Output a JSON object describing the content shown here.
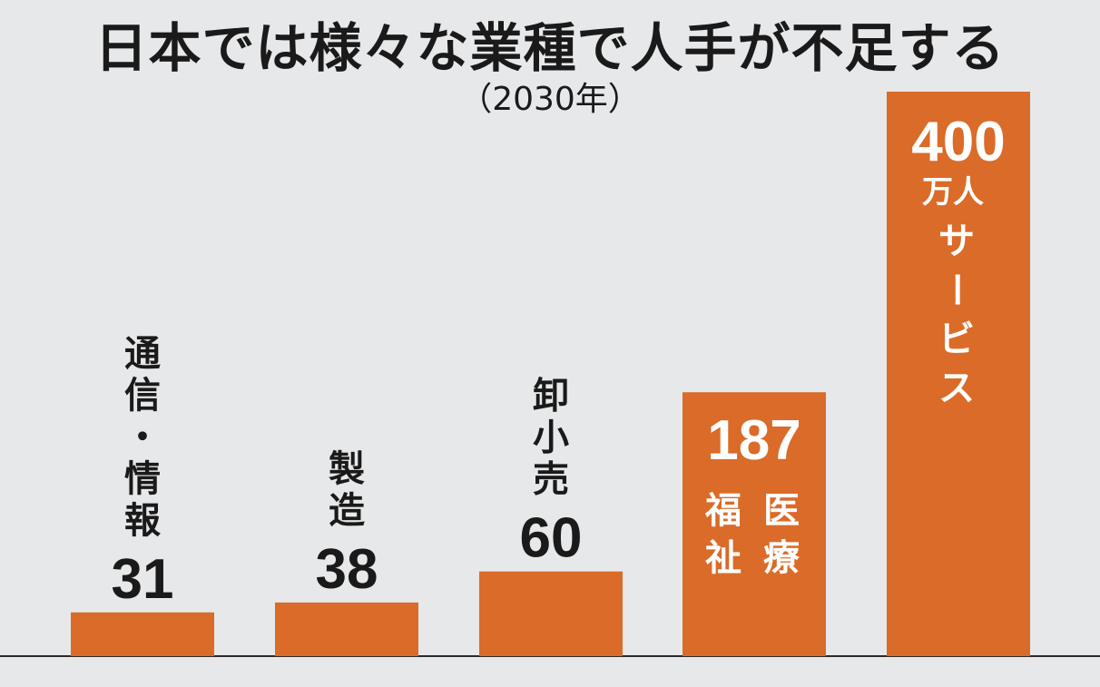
{
  "chart_data": {
    "type": "bar",
    "title": "日本では様々な業種で人手が不足する",
    "subtitle": "（2030年）",
    "unit": "万人",
    "categories": [
      "通信・情報",
      "製造",
      "卸小売",
      "医療福祉",
      "サービス"
    ],
    "values": [
      31,
      38,
      60,
      187,
      400
    ],
    "label_lines": [
      [
        "通",
        "信",
        "・",
        "情",
        "報"
      ],
      [
        "製",
        "造"
      ],
      [
        "卸",
        "小",
        "売"
      ],
      [
        "医",
        "療",
        "福",
        "祉"
      ],
      [
        "サ",
        "ー",
        "ビ",
        "ス"
      ]
    ],
    "ylim": [
      0,
      400
    ],
    "grid": false,
    "legend": "none",
    "bar_color": "#da6b28",
    "background_color": "#e7e8e9"
  }
}
